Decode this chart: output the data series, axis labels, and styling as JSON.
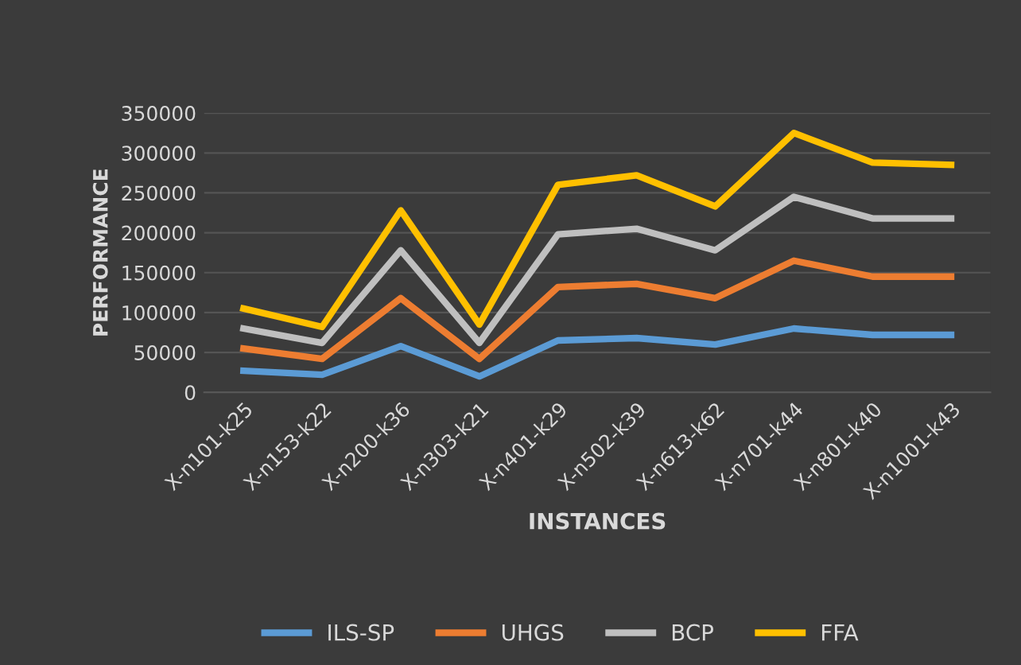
{
  "chart_data": {
    "type": "line",
    "xlabel": "INSTANCES",
    "ylabel": "PERFORMANCE",
    "categories": [
      "X-n101-k25",
      "X-n153-k22",
      "X-n200-k36",
      "X-n303-k21",
      "X-n401-k29",
      "X-n502-k39",
      "X-n613-k62",
      "X-n701-k44",
      "X-n801-k40",
      "X-n1001-k43"
    ],
    "series": [
      {
        "name": "ILS-SP",
        "color": "#5b9bd5",
        "values": [
          27000,
          22000,
          58000,
          20000,
          65000,
          68000,
          60000,
          80000,
          72000,
          72000
        ]
      },
      {
        "name": "UHGS",
        "color": "#ed7d31",
        "values": [
          55000,
          42000,
          118000,
          42000,
          132000,
          136000,
          118000,
          165000,
          145000,
          145000
        ]
      },
      {
        "name": "BCP",
        "color": "#bfbfbf",
        "values": [
          80000,
          62000,
          178000,
          62000,
          198000,
          205000,
          178000,
          245000,
          218000,
          218000
        ]
      },
      {
        "name": "FFA",
        "color": "#ffc000",
        "values": [
          105000,
          82000,
          228000,
          85000,
          260000,
          272000,
          233000,
          325000,
          288000,
          285000
        ]
      }
    ],
    "ylim": [
      0,
      350000
    ],
    "yticks": [
      0,
      50000,
      100000,
      150000,
      200000,
      250000,
      300000,
      350000
    ],
    "grid": "y",
    "legend": "bottom",
    "marker": "none",
    "line_style": "solid"
  }
}
